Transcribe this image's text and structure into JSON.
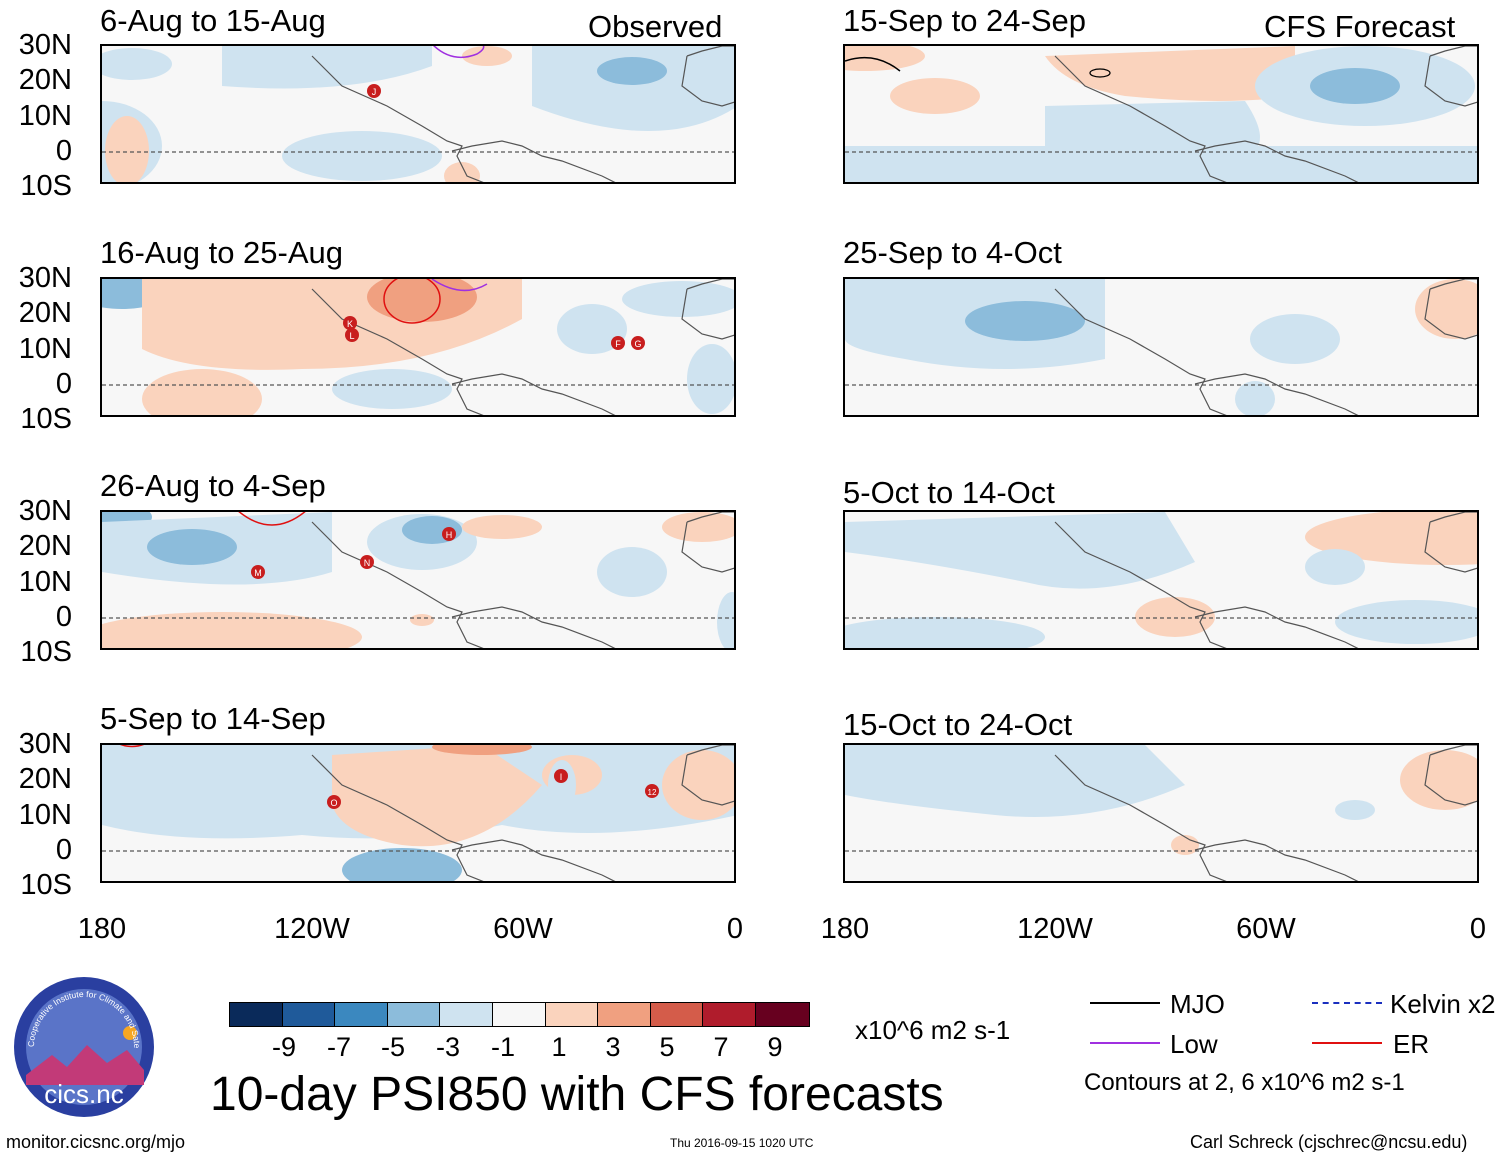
{
  "main_title": "10-day PSI850 with CFS forecasts",
  "column_headers": {
    "left": "Observed",
    "right": "CFS Forecast"
  },
  "lat_labels": [
    "30N",
    "20N",
    "10N",
    "0",
    "10S"
  ],
  "lon_labels": [
    "180",
    "120W",
    "60W",
    "0"
  ],
  "panels": {
    "left": [
      {
        "title": "6-Aug to 15-Aug",
        "storms": [
          "J"
        ]
      },
      {
        "title": "16-Aug to 25-Aug",
        "storms": [
          "K",
          "L",
          "F",
          "G"
        ]
      },
      {
        "title": "26-Aug to 4-Sep",
        "storms": [
          "M",
          "N",
          "H"
        ]
      },
      {
        "title": "5-Sep to 14-Sep",
        "storms": [
          "O",
          "I",
          "12"
        ]
      }
    ],
    "right": [
      {
        "title": "15-Sep to 24-Sep"
      },
      {
        "title": "25-Sep to 4-Oct"
      },
      {
        "title": "5-Oct to 14-Oct"
      },
      {
        "title": "15-Oct to 24-Oct"
      }
    ]
  },
  "colorbar": {
    "labels": [
      "-9",
      "-7",
      "-5",
      "-3",
      "-1",
      "1",
      "3",
      "5",
      "7",
      "9"
    ],
    "colors": [
      "#0a2a5a",
      "#1f5a9a",
      "#3b88bf",
      "#8cbcdb",
      "#cfe3f0",
      "#f7f7f7",
      "#fad3bd",
      "#f0a080",
      "#d45c4a",
      "#b01c2c",
      "#67001f"
    ],
    "units": "x10^6 m2 s-1"
  },
  "legend": {
    "items": [
      {
        "label": "MJO",
        "color": "#000000"
      },
      {
        "label": "Kelvin x2",
        "color": "#1a2fbf"
      },
      {
        "label": "Low",
        "color": "#a030e0"
      },
      {
        "label": "ER",
        "color": "#e01010"
      }
    ],
    "contour_note": "Contours at 2, 6 x10^6 m2 s-1"
  },
  "logo_text": "cics.nc",
  "logo_ring_text": "Cooperative Institute for Climate and Satellites",
  "footer": {
    "url": "monitor.cicsnc.org/mjo",
    "timestamp": "Thu 2016-09-15 1020 UTC",
    "author": "Carl Schreck (cjschrec@ncsu.edu)"
  }
}
